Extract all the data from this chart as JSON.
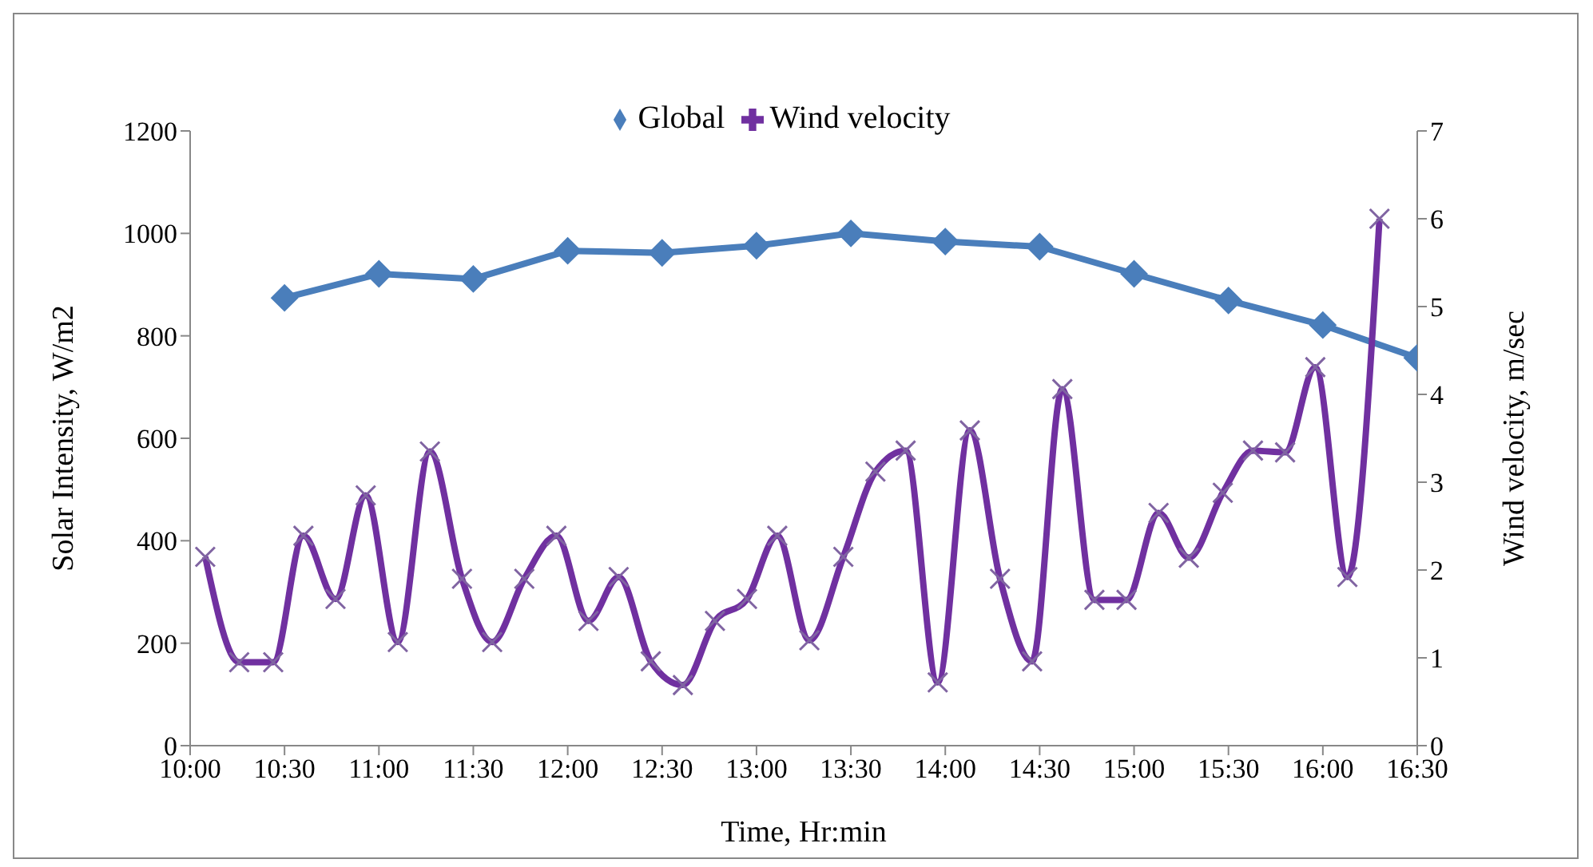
{
  "chart_data": {
    "type": "line",
    "xlabel": "Time, Hr:min",
    "ylabel": "Solar Intensity, W/m2",
    "y2label": "Wind velocity, m/sec",
    "xlim": [
      10,
      16.5
    ],
    "xticks": [
      {
        "value": 10,
        "label": "10:00"
      },
      {
        "value": 10.5,
        "label": "10:30"
      },
      {
        "value": 11,
        "label": "11:00"
      },
      {
        "value": 11.5,
        "label": "11:30"
      },
      {
        "value": 12,
        "label": "12:00"
      },
      {
        "value": 12.5,
        "label": "12:30"
      },
      {
        "value": 13,
        "label": "13:00"
      },
      {
        "value": 13.5,
        "label": "13:30"
      },
      {
        "value": 14,
        "label": "14:00"
      },
      {
        "value": 14.5,
        "label": "14:30"
      },
      {
        "value": 15,
        "label": "15:00"
      },
      {
        "value": 15.5,
        "label": "15:30"
      },
      {
        "value": 16,
        "label": "16:00"
      },
      {
        "value": 16.5,
        "label": "16:30"
      }
    ],
    "ylim": [
      0,
      1200
    ],
    "yticks": [
      0,
      200,
      400,
      600,
      800,
      1000,
      1200
    ],
    "y2lim": [
      0,
      7
    ],
    "y2ticks": [
      0,
      1,
      2,
      3,
      4,
      5,
      6,
      7
    ],
    "grid": false,
    "legend": "top",
    "line_style": "solid",
    "series": [
      {
        "name": "Global",
        "color": "#4a7ebb",
        "marker": "diamond",
        "x": [
          10.5,
          11,
          11.5,
          12,
          12.5,
          13,
          13.5,
          14,
          14.5,
          15,
          15.5,
          16,
          16.5
        ],
        "values": [
          874,
          921,
          911,
          966,
          962,
          976,
          1000,
          984,
          974,
          921,
          869,
          821,
          757
        ]
      },
      {
        "name": "Wind velocity",
        "color": "#7030a0",
        "marker": "cross",
        "axis": "y2",
        "x": [
          10.08,
          10.26,
          10.44,
          10.6,
          10.77,
          10.93,
          11.1,
          11.27,
          11.44,
          11.6,
          11.77,
          11.94,
          12.11,
          12.27,
          12.44,
          12.61,
          12.78,
          12.95,
          13.11,
          13.28,
          13.46,
          13.63,
          13.79,
          13.96,
          14.13,
          14.29,
          14.46,
          14.62,
          14.79,
          14.96,
          15.13,
          15.29,
          15.47,
          15.63,
          15.8,
          15.96,
          16.13,
          16.3
        ],
        "values": [
          2.15,
          0.95,
          0.95,
          2.39,
          1.67,
          2.85,
          1.18,
          3.35,
          1.9,
          1.18,
          1.9,
          2.39,
          1.42,
          1.92,
          0.96,
          0.69,
          1.42,
          1.67,
          2.39,
          1.2,
          2.15,
          3.12,
          3.36,
          0.72,
          3.59,
          1.9,
          0.96,
          4.06,
          1.66,
          1.66,
          2.65,
          2.14,
          2.88,
          3.36,
          3.34,
          4.31,
          1.92,
          6.0
        ]
      }
    ]
  }
}
